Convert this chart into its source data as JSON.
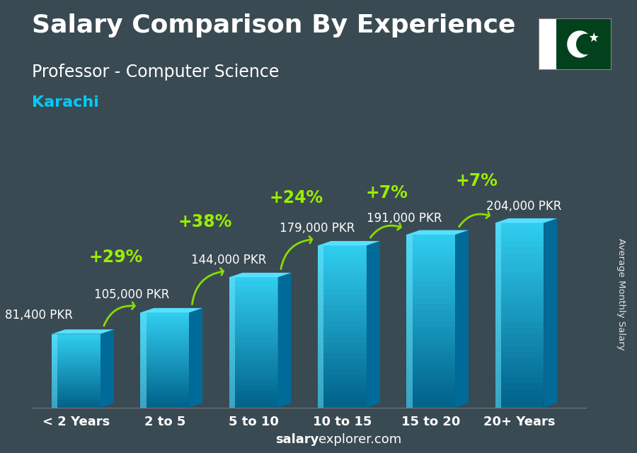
{
  "title": "Salary Comparison By Experience",
  "subtitle": "Professor - Computer Science",
  "city": "Karachi",
  "ylabel": "Average Monthly Salary",
  "footer_bold": "salary",
  "footer_normal": "explorer.com",
  "categories": [
    "< 2 Years",
    "2 to 5",
    "5 to 10",
    "10 to 15",
    "15 to 20",
    "20+ Years"
  ],
  "values": [
    81400,
    105000,
    144000,
    179000,
    191000,
    204000
  ],
  "labels": [
    "81,400 PKR",
    "105,000 PKR",
    "144,000 PKR",
    "179,000 PKR",
    "191,000 PKR",
    "204,000 PKR"
  ],
  "pct_labels": [
    "+29%",
    "+38%",
    "+24%",
    "+7%",
    "+7%"
  ],
  "bar_color_main": "#00b8d9",
  "bar_color_light": "#40d4f0",
  "bar_color_dark": "#0077a8",
  "bar_color_top": "#55e0ff",
  "bar_color_side": "#006b99",
  "bg_color": "#3a4a52",
  "title_color": "#ffffff",
  "subtitle_color": "#ffffff",
  "city_color": "#00ccff",
  "label_color": "#ffffff",
  "pct_color": "#99ee00",
  "arrow_color": "#88dd00",
  "footer_color": "#ffffff",
  "ylim": [
    0,
    250000
  ],
  "bar_width": 0.55,
  "title_fontsize": 26,
  "subtitle_fontsize": 17,
  "city_fontsize": 16,
  "label_fontsize": 12,
  "pct_fontsize": 17,
  "tick_fontsize": 13,
  "footer_fontsize": 13
}
